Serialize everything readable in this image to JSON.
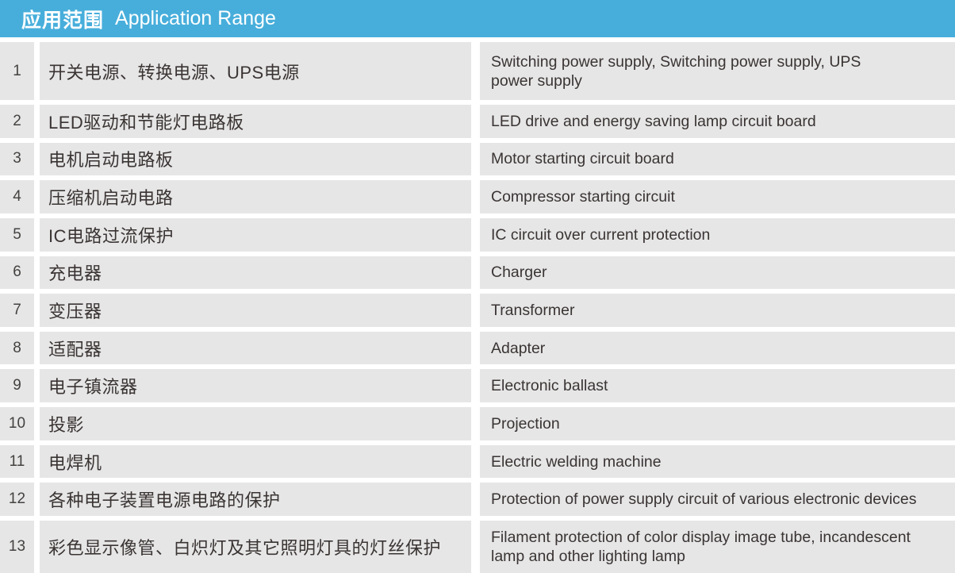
{
  "header": {
    "title_zh": "应用范围",
    "title_en": "Application Range"
  },
  "colors": {
    "header_bg": "#47aedb",
    "row_bg": "#e6e6e6",
    "text": "#3a3433",
    "gap": "#ffffff"
  },
  "table": {
    "columns": [
      "number",
      "chinese",
      "english"
    ],
    "rows": [
      {
        "num": "1",
        "zh": "开关电源、转换电源、UPS电源",
        "en": "Switching power supply, Switching power supply, UPS power supply"
      },
      {
        "num": "2",
        "zh": "LED驱动和节能灯电路板",
        "en": "LED drive and energy saving lamp circuit board"
      },
      {
        "num": "3",
        "zh": "电机启动电路板",
        "en": "Motor starting circuit board"
      },
      {
        "num": "4",
        "zh": "压缩机启动电路",
        "en": "Compressor starting circuit"
      },
      {
        "num": "5",
        "zh": "IC电路过流保护",
        "en": "IC circuit over current protection"
      },
      {
        "num": "6",
        "zh": "充电器",
        "en": "Charger"
      },
      {
        "num": "7",
        "zh": "变压器",
        "en": "Transformer"
      },
      {
        "num": "8",
        "zh": "适配器",
        "en": "Adapter"
      },
      {
        "num": "9",
        "zh": "电子镇流器",
        "en": "Electronic ballast"
      },
      {
        "num": "10",
        "zh": "投影",
        "en": "Projection"
      },
      {
        "num": "11",
        "zh": "电焊机",
        "en": "Electric welding machine"
      },
      {
        "num": "12",
        "zh": "各种电子装置电源电路的保护",
        "en": "Protection of power supply circuit of various electronic devices"
      },
      {
        "num": "13",
        "zh": "彩色显示像管、白炽灯及其它照明灯具的灯丝保护",
        "en": "Filament protection of color display image tube, incandescent lamp and other lighting lamp"
      }
    ]
  }
}
